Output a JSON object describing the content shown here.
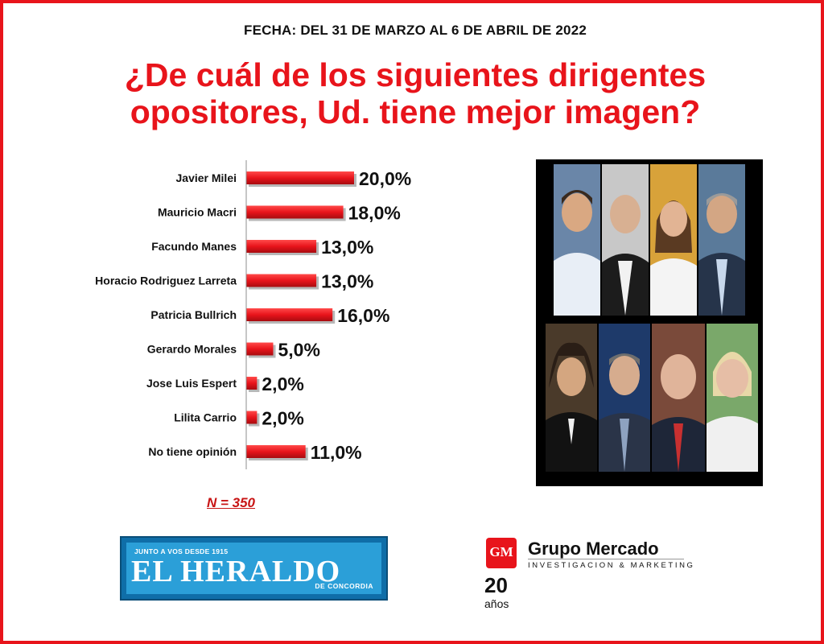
{
  "header": {
    "subtitle": "FECHA: DEL 31 DE MARZO AL 6 DE ABRIL DE 2022",
    "title_line1": "¿De cuál de los siguientes dirigentes",
    "title_line2": "opositores, Ud. tiene mejor imagen?"
  },
  "chart_data": {
    "type": "bar",
    "orientation": "horizontal",
    "title": "¿De cuál de los siguientes dirigentes opositores, Ud. tiene mejor imagen?",
    "categories": [
      "Javier Milei",
      "Mauricio Macri",
      "Facundo Manes",
      "Horacio Rodriguez Larreta",
      "Patricia Bullrich",
      "Gerardo Morales",
      "Jose Luis Espert",
      "Lilita Carrio",
      "No tiene opinión"
    ],
    "values": [
      20.0,
      18.0,
      13.0,
      13.0,
      16.0,
      5.0,
      2.0,
      2.0,
      11.0
    ],
    "value_labels": [
      "20,0%",
      "18,0%",
      "13,0%",
      "13,0%",
      "16,0%",
      "5,0%",
      "2,0%",
      "2,0%",
      "11,0%"
    ],
    "unit": "%",
    "bar_color": "#e8141b",
    "grid": false,
    "legend": "none"
  },
  "sample": "N = 350",
  "logos": {
    "heraldo": {
      "tagline": "JUNTO A VOS DESDE 1915",
      "name": "EL HERALDO",
      "place": "DE CONCORDIA"
    },
    "grupo_mercado": {
      "mark": "GM",
      "name": "Grupo Mercado",
      "subtitle": "INVESTIGACION & MARKETING",
      "years": "20",
      "years_word": "años"
    }
  },
  "colors": {
    "accent": "#e8141b",
    "text": "#111111",
    "heraldo_blue": "#2b9fd8"
  },
  "photos": [
    "portrait-1",
    "portrait-2",
    "portrait-3",
    "portrait-4",
    "portrait-5",
    "portrait-6",
    "portrait-7",
    "portrait-8"
  ]
}
